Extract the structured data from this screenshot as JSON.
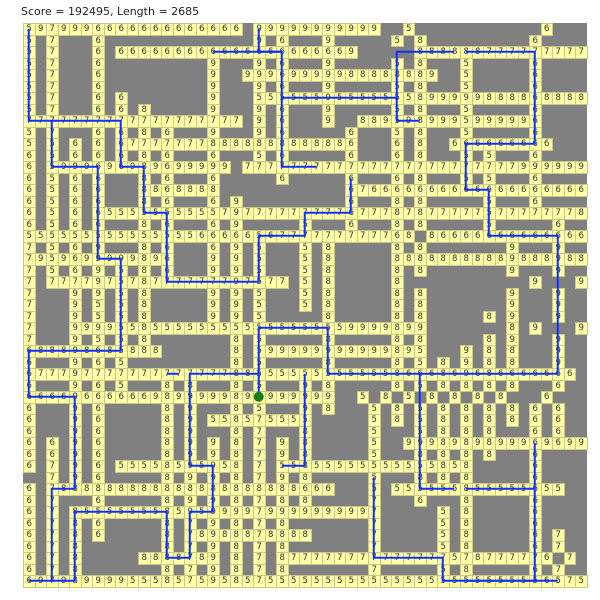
{
  "header": {
    "status": "Score = 192495, Length = 2685"
  },
  "colors": {
    "empty": "#808080",
    "cell": "#ffffa8",
    "route": "#1030ff",
    "current": "#1a7a1a"
  },
  "grid": [
    "5979996666666666666.99999999999..5...........6....",
    "5.7...6.............9.6...9.....5.8.........6....",
    "5.7...6.666666666666666666669.....88888877777777777",
    "5.7...6.........9...9.6...9.....5.8...5.....6....",
    "5.7...6.........9..99969999988888889..5.....6....",
    "5.7...6.........9...9.6...9.....5.8...5.....6....",
    "5.7...6.6.......9...55555595555555899999888868888",
    "5.7...6.6.8.....9...9.6...9.....5.8...5.....6....",
    "7777777777777777777.9.6...9..8895989995999996....",
    "5.7...6.6.8.6...9...9.6.....6...5.8...5.....6....",
    "5.5.6.6.677777778888888888886...6.8..666666666...",
    "6.5.6.6.6.8.6...6...5.6.....6...6.8...5.5...6....",
    "6.5999696989699999.777777777777777777777777999999999",
    "6.5.6.6...8.6...6.....6.....6...6.8...5.5...6....",
    "6.5.6.6...8868888...........676666666666666666666",
    "6.5.6.6...8.6...6.9.........6...8.8.....5...6....",
    "6.5.6.6555555555579777777777677787877777577777778",
    "6.5.6.6...8.6...6.9.....5...6...8.8.....5.....6..",
    "5555555555555556666656777777777768.866666666666666",
    "7.5.6.9...8.6...6.9.5...5.8.....8.8.......9...9..",
    "7959699999896...9.9.5...5.8.....88888888889888988",
    "7.5.6.9.5.8.6...9.9.5...5.8.....8.8.......9...9..",
    "7.777797578777777797577.5.8.....8...........9...9..",
    "7...9.9.5.8.....9.9.5...5.8.....8.8.......9...9..",
    "7...9.5.5.8.....9.9.5...5.8.....8.8.......9...9..",
    "7...9.5.5.8.....9.9.5.....8.....8.8.....8.9...9..",
    "7...9999558555555555555555559999899.......8.9...9..",
    "7...9.5.5.8.......8.5.....8.....8.8.....8.9...9..",
    "688898685888......8.59999999999989 5...9.8.8...9..",
    "6...9.6.5.........8.5.....8.....8.5.8.9.8.8...9..",
    "677797777777777777885555555555558666869686666666..",
    "6...9.6.5...8.8...8.5...9.8.....8.5.8.8.8.8...6..",
    "666696666669899999895999999..5.8.5.8.8.8.8...6..",
    "6...9.6.....8.9...8.5...9.8...5.8.5.8.8.8.8.6.6..",
    "6...9.6.....8.9.558575555.....5.8.5.8.8.8.8.6.6..",
    "6...9.6.....8.9...8.7...8.....5...5.8.8.8...6.6..",
    "6.6.9.6.....8.9.9.8.7.9.8.....5..9998989899969699",
    "6.6.9.6.....8.9.9.8.7.9.8.....5...8.8.8.8...6....",
    "6.7.9.6.55558595958.7.5585555555555585 8.....6....",
    "..7.9.6.....8.9.9.8.7.9.8.....5...8.8.8.....6....",
    "6.78888888888888888888886 66...5.555555855555655..",
    "6.7...6.....8.9.9.8.7.8.8.....7...6...8.....6....",
    "6.7.855555558595999979999999997.....5.8.....6....",
    "6.7.8.6.....8.7.9.8.7.8.......7.....5.8.....6....",
    "6.7.8.6.....8.78988878888.....7.....5.8.....6.7..",
    "6.7.8.......8.7.9.8.7.8.......7.....5.8.....6.7..",
    "6.7.8.....8888789.8.7.877777777777777578777776.7..",
    "6.7.8.......8.7.9.8.7.8.......7.....5.8.....6.7..",
    "69798999955585759585755555555555555555555555565755"
  ],
  "route": {
    "current_cell": [
      20,
      32
    ],
    "segments": [
      [
        [
          0,
          0
        ],
        [
          0,
          8
        ],
        [
          8,
          8
        ],
        [
          8,
          12
        ],
        [
          10,
          12
        ],
        [
          10,
          16
        ],
        [
          12,
          16
        ],
        [
          12,
          22
        ],
        [
          20,
          22
        ],
        [
          20,
          18
        ],
        [
          24,
          18
        ],
        [
          24,
          16
        ],
        [
          28,
          16
        ],
        [
          28,
          13
        ]
      ],
      [
        [
          2,
          8
        ],
        [
          2,
          12
        ],
        [
          6,
          12
        ],
        [
          6,
          20
        ],
        [
          8,
          20
        ],
        [
          8,
          28
        ],
        [
          0,
          28
        ],
        [
          0,
          32
        ],
        [
          4,
          32
        ],
        [
          4,
          40
        ],
        [
          2,
          40
        ],
        [
          2,
          48
        ],
        [
          4,
          48
        ],
        [
          4,
          42
        ],
        [
          12,
          42
        ],
        [
          12,
          46
        ],
        [
          14,
          46
        ],
        [
          14,
          42
        ],
        [
          16,
          42
        ],
        [
          16,
          38
        ],
        [
          14,
          38
        ],
        [
          14,
          30
        ],
        [
          20,
          30
        ],
        [
          20,
          26
        ],
        [
          26,
          26
        ],
        [
          26,
          30
        ],
        [
          34,
          30
        ],
        [
          34,
          40
        ],
        [
          37,
          40
        ]
      ],
      [
        [
          20,
          0
        ],
        [
          20,
          2
        ],
        [
          22,
          2
        ],
        [
          22,
          12
        ],
        [
          25,
          12
        ]
      ],
      [
        [
          16,
          2
        ],
        [
          22,
          2
        ]
      ],
      [
        [
          22,
          6
        ],
        [
          26,
          6
        ],
        [
          32,
          6
        ],
        [
          32,
          2
        ],
        [
          37,
          2
        ]
      ],
      [
        [
          32,
          6
        ],
        [
          32,
          8
        ],
        [
          34,
          8
        ]
      ],
      [
        [
          38,
          2
        ],
        [
          44,
          2
        ],
        [
          44,
          10
        ],
        [
          38,
          10
        ],
        [
          38,
          14
        ],
        [
          40,
          14
        ],
        [
          40,
          18
        ],
        [
          46,
          18
        ],
        [
          46,
          30
        ],
        [
          34,
          30
        ]
      ],
      [
        [
          20,
          30
        ],
        [
          20,
          32
        ]
      ],
      [
        [
          24,
          30
        ],
        [
          24,
          38
        ],
        [
          22,
          38
        ]
      ],
      [
        [
          12,
          30
        ],
        [
          13,
          30
        ]
      ],
      [
        [
          44,
          36
        ],
        [
          44,
          48
        ],
        [
          38,
          48
        ]
      ],
      [
        [
          38,
          40
        ],
        [
          44,
          40
        ]
      ],
      [
        [
          30,
          39
        ],
        [
          30,
          46
        ],
        [
          36,
          46
        ],
        [
          36,
          48
        ],
        [
          46,
          48
        ]
      ],
      [
        [
          0,
          48
        ],
        [
          2,
          48
        ]
      ]
    ]
  }
}
